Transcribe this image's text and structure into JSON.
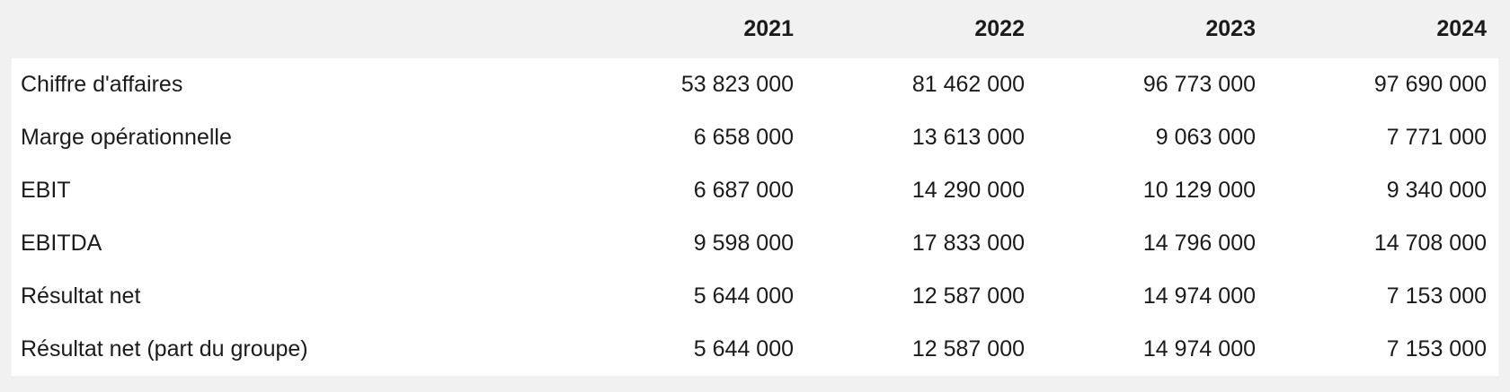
{
  "table": {
    "header": {
      "label": "",
      "years": [
        "2021",
        "2022",
        "2023",
        "2024"
      ]
    },
    "rows": [
      {
        "label": "Chiffre d'affaires",
        "values": [
          "53 823 000",
          "81 462 000",
          "96 773 000",
          "97 690 000"
        ]
      },
      {
        "label": "Marge opérationnelle",
        "values": [
          "6 658 000",
          "13 613 000",
          "9 063 000",
          "7 771 000"
        ]
      },
      {
        "label": "EBIT",
        "values": [
          "6 687 000",
          "14 290 000",
          "10 129 000",
          "9 340 000"
        ]
      },
      {
        "label": "EBITDA",
        "values": [
          "9 598 000",
          "17 833 000",
          "14 796 000",
          "14 708 000"
        ]
      },
      {
        "label": "Résultat net",
        "values": [
          "5 644 000",
          "12 587 000",
          "14 974 000",
          "7 153 000"
        ]
      },
      {
        "label": "Résultat net (part du groupe)",
        "values": [
          "5 644 000",
          "12 587 000",
          "14 974 000",
          "7 153 000"
        ]
      }
    ],
    "colors": {
      "page_background": "#f1f1f2",
      "body_background": "#ffffff",
      "text": "#1b1b1b"
    }
  }
}
